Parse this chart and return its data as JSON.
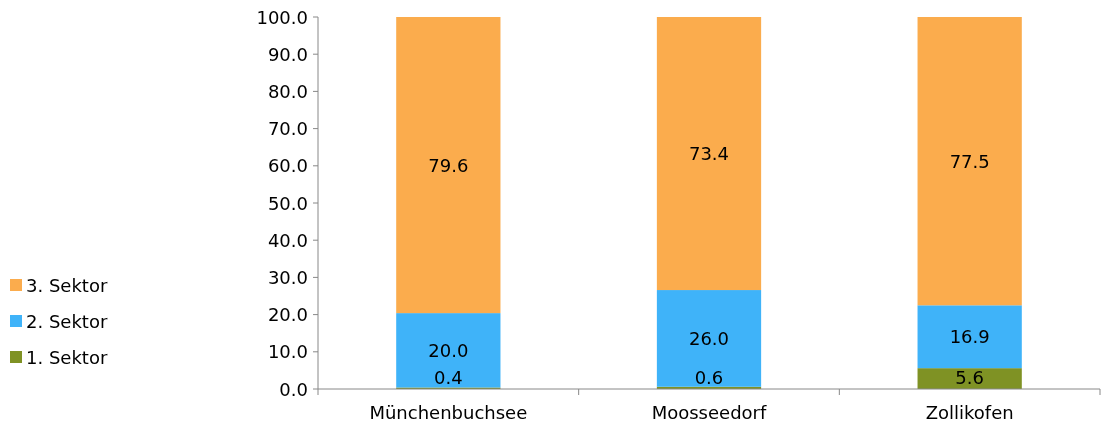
{
  "chart_data": {
    "type": "bar",
    "stacked": true,
    "categories": [
      "Münchenbuchsee",
      "Moosseedorf",
      "Zollikofen"
    ],
    "series": [
      {
        "name": "1. Sektor",
        "color": "#7f9224",
        "values": [
          0.4,
          0.6,
          5.6
        ],
        "value_labels": [
          "0.4",
          "0.6",
          "5.6"
        ]
      },
      {
        "name": "2. Sektor",
        "color": "#3fb3f9",
        "values": [
          20.0,
          26.0,
          16.9
        ],
        "value_labels": [
          "20.0",
          "26.0",
          "16.9"
        ]
      },
      {
        "name": "3. Sektor",
        "color": "#fbac4d",
        "values": [
          79.6,
          73.4,
          77.5
        ],
        "value_labels": [
          "79.6",
          "73.4",
          "77.5"
        ]
      }
    ],
    "ylim": [
      0,
      100
    ],
    "yticks": [
      {
        "value": 0,
        "label": "0.0"
      },
      {
        "value": 10,
        "label": "10.0"
      },
      {
        "value": 20,
        "label": "20.0"
      },
      {
        "value": 30,
        "label": "30.0"
      },
      {
        "value": 40,
        "label": "40.0"
      },
      {
        "value": 50,
        "label": "50.0"
      },
      {
        "value": 60,
        "label": "60.0"
      },
      {
        "value": 70,
        "label": "70.0"
      },
      {
        "value": 80,
        "label": "80.0"
      },
      {
        "value": 90,
        "label": "90.0"
      },
      {
        "value": 100,
        "label": "100.0"
      }
    ],
    "legend": "left"
  }
}
